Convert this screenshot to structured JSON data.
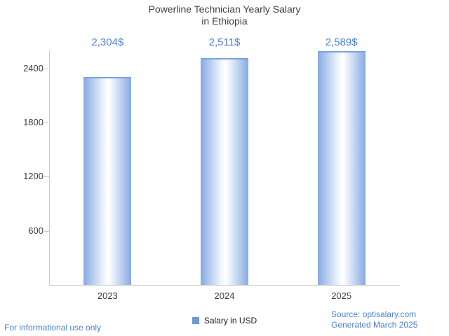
{
  "chart_data": {
    "type": "bar",
    "title": "Powerline Technician Yearly Salary in Ethiopia",
    "title_lines": [
      "Powerline Technician Yearly Salary",
      "in Ethiopia"
    ],
    "categories": [
      "2023",
      "2024",
      "2025"
    ],
    "values": [
      2304,
      2511,
      2589
    ],
    "value_labels": [
      "2,304$",
      "2,511$",
      "2,589$"
    ],
    "xlabel": "",
    "ylabel": "",
    "ylim": [
      0,
      2600
    ],
    "yticks": [
      600,
      1200,
      1800,
      2400
    ],
    "grid": false,
    "legend_position": "bottom",
    "legend": [
      {
        "label": "Salary in USD",
        "color": "#6f97d8"
      }
    ]
  },
  "footer": {
    "disclaimer": "For informational use only",
    "source": "Source: optisalary.com",
    "generated": "Generated March 2025"
  },
  "colors": {
    "accent_text": "#4d82cc",
    "bar_edge": "#86aae2",
    "axis": "#cbcbcb",
    "title_text": "#404040",
    "tick_text": "#3d3d3d"
  }
}
